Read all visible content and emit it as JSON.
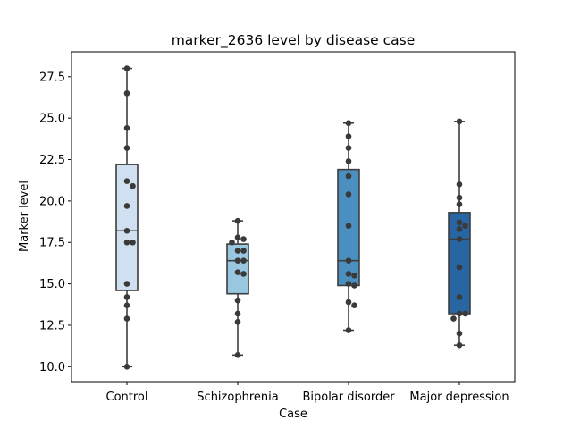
{
  "chart_data": {
    "type": "box",
    "title": "marker_2636 level by disease case",
    "xlabel": "Case",
    "ylabel": "Marker level",
    "ylim": [
      9.1,
      29.0
    ],
    "yticks": [
      10.0,
      12.5,
      15.0,
      17.5,
      20.0,
      22.5,
      25.0,
      27.5
    ],
    "ytick_labels": [
      "10.0",
      "12.5",
      "15.0",
      "17.5",
      "20.0",
      "22.5",
      "25.0",
      "27.5"
    ],
    "grid": false,
    "categories": [
      "Control",
      "Schizophrenia",
      "Bipolar disorder",
      "Major depression"
    ],
    "colors": [
      "#d0e0f0",
      "#9ac7e0",
      "#4a8fbf",
      "#2765a3"
    ],
    "point_color": "#3a3a3a",
    "boxes": [
      {
        "category": "Control",
        "min": 10.0,
        "q1": 14.6,
        "median": 18.2,
        "q3": 22.2,
        "max": 28.0
      },
      {
        "category": "Schizophrenia",
        "min": 10.7,
        "q1": 14.4,
        "median": 16.4,
        "q3": 17.4,
        "max": 18.8
      },
      {
        "category": "Bipolar disorder",
        "min": 12.2,
        "q1": 14.9,
        "median": 16.4,
        "q3": 21.9,
        "max": 24.7
      },
      {
        "category": "Major depression",
        "min": 11.3,
        "q1": 13.2,
        "median": 17.7,
        "q3": 19.3,
        "max": 24.8
      }
    ],
    "points": [
      {
        "category": "Control",
        "values": [
          28.0,
          26.5,
          24.4,
          23.2,
          21.2,
          20.9,
          19.7,
          18.2,
          17.5,
          17.5,
          15.0,
          14.2,
          13.7,
          12.9,
          10.0
        ]
      },
      {
        "category": "Schizophrenia",
        "values": [
          18.8,
          17.8,
          17.7,
          17.5,
          17.0,
          17.0,
          16.4,
          16.4,
          15.7,
          15.6,
          14.0,
          13.2,
          12.7,
          10.7
        ]
      },
      {
        "category": "Bipolar disorder",
        "values": [
          24.7,
          23.9,
          23.2,
          22.4,
          21.5,
          20.4,
          18.5,
          16.4,
          15.6,
          15.5,
          15.0,
          14.9,
          13.9,
          13.7,
          12.2
        ]
      },
      {
        "category": "Major depression",
        "values": [
          24.8,
          21.0,
          20.2,
          19.8,
          18.7,
          18.5,
          18.3,
          17.7,
          16.0,
          14.2,
          13.2,
          13.2,
          12.9,
          12.0,
          11.3
        ]
      }
    ]
  }
}
